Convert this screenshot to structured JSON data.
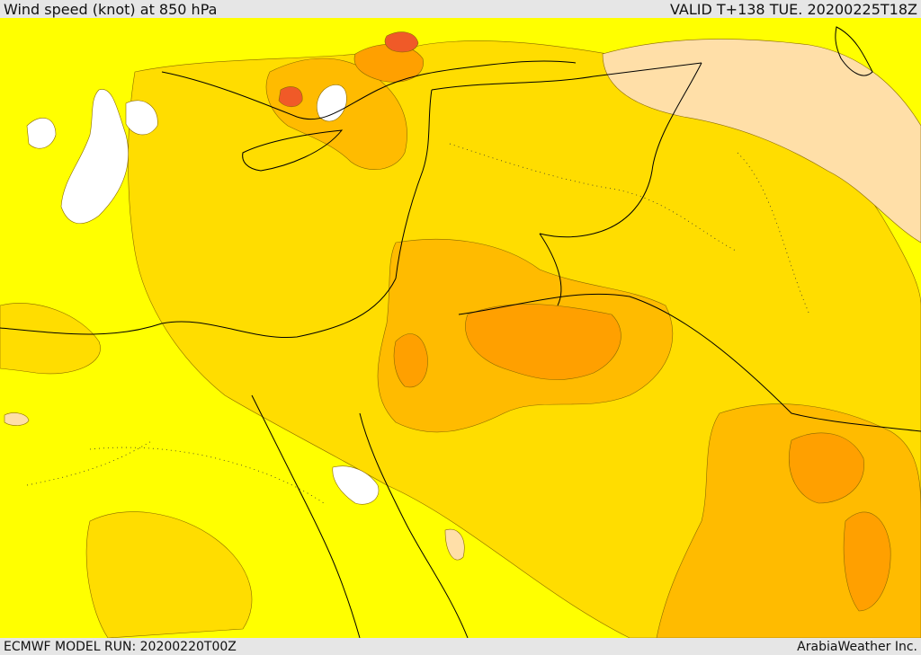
{
  "header": {
    "title": "Wind speed (knot) at 850 hPa",
    "valid": "VALID T+138 TUE. 20200225T18Z"
  },
  "footer": {
    "model_run": "ECMWF MODEL RUN: 20200220T00Z",
    "credit": "ArabiaWeather Inc."
  },
  "palette": {
    "lowest": "#ffffff",
    "low": "#ffff00",
    "mid": "#ffdd00",
    "high": "#ffbb00",
    "higher": "#ffa000",
    "highest": "#ff7a00",
    "peak": "#f05a28",
    "pale": "#ffdfa8",
    "boundary": "#000000"
  }
}
